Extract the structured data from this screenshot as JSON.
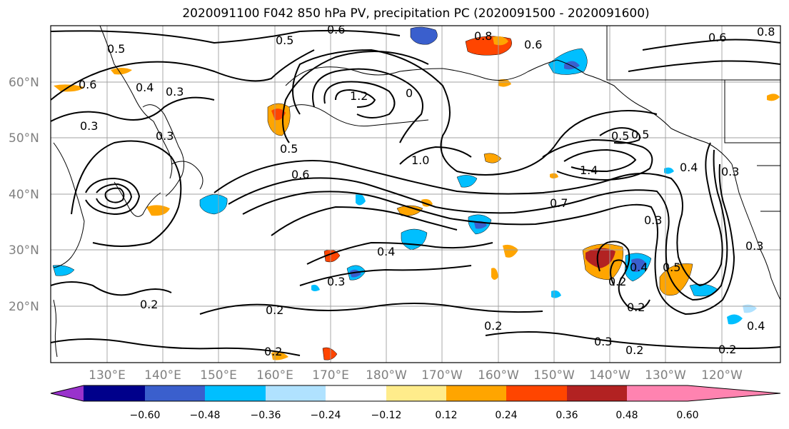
{
  "title": "2020091100 F042 850 hPa PV, precipitation PC (2020091500 - 2020091600)",
  "map": {
    "lon_labels": [
      "130°E",
      "140°E",
      "150°E",
      "160°E",
      "170°E",
      "180°W",
      "170°W",
      "160°W",
      "150°W",
      "140°W",
      "130°W",
      "120°W"
    ],
    "lat_labels": [
      "60°N",
      "50°N",
      "40°N",
      "30°N",
      "20°N"
    ],
    "contour_labels": [
      "0.6",
      "0.8",
      "0.6",
      "0.6",
      "0.8",
      "0.5",
      "0.5",
      "0.4",
      "0.3",
      "0.6",
      "1.2",
      "0",
      "0.3",
      "0.3",
      "0.5",
      "0.6",
      "1.0",
      "1.4",
      "0.5",
      "0.5",
      "0.3",
      "0.4",
      "0.3",
      "0.7",
      "0.3",
      "0.4",
      "0.3",
      "0.2",
      "0.2",
      "0.4",
      "0.5",
      "0.2",
      "0.2",
      "0.2",
      "0.3",
      "0.2",
      "0.2",
      "0.4",
      "0.2"
    ]
  },
  "colorbar": {
    "colors": [
      "#9932cc",
      "#00008b",
      "#3a5fcd",
      "#00bfff",
      "#b0e2ff",
      "#ffffff",
      "#ffec8b",
      "#ffa500",
      "#ff4500",
      "#b22222",
      "#ff83b0"
    ],
    "ticks": [
      "−0.60",
      "−0.48",
      "−0.36",
      "−0.24",
      "−0.12",
      "0.12",
      "0.24",
      "0.36",
      "0.48",
      "0.60"
    ]
  }
}
